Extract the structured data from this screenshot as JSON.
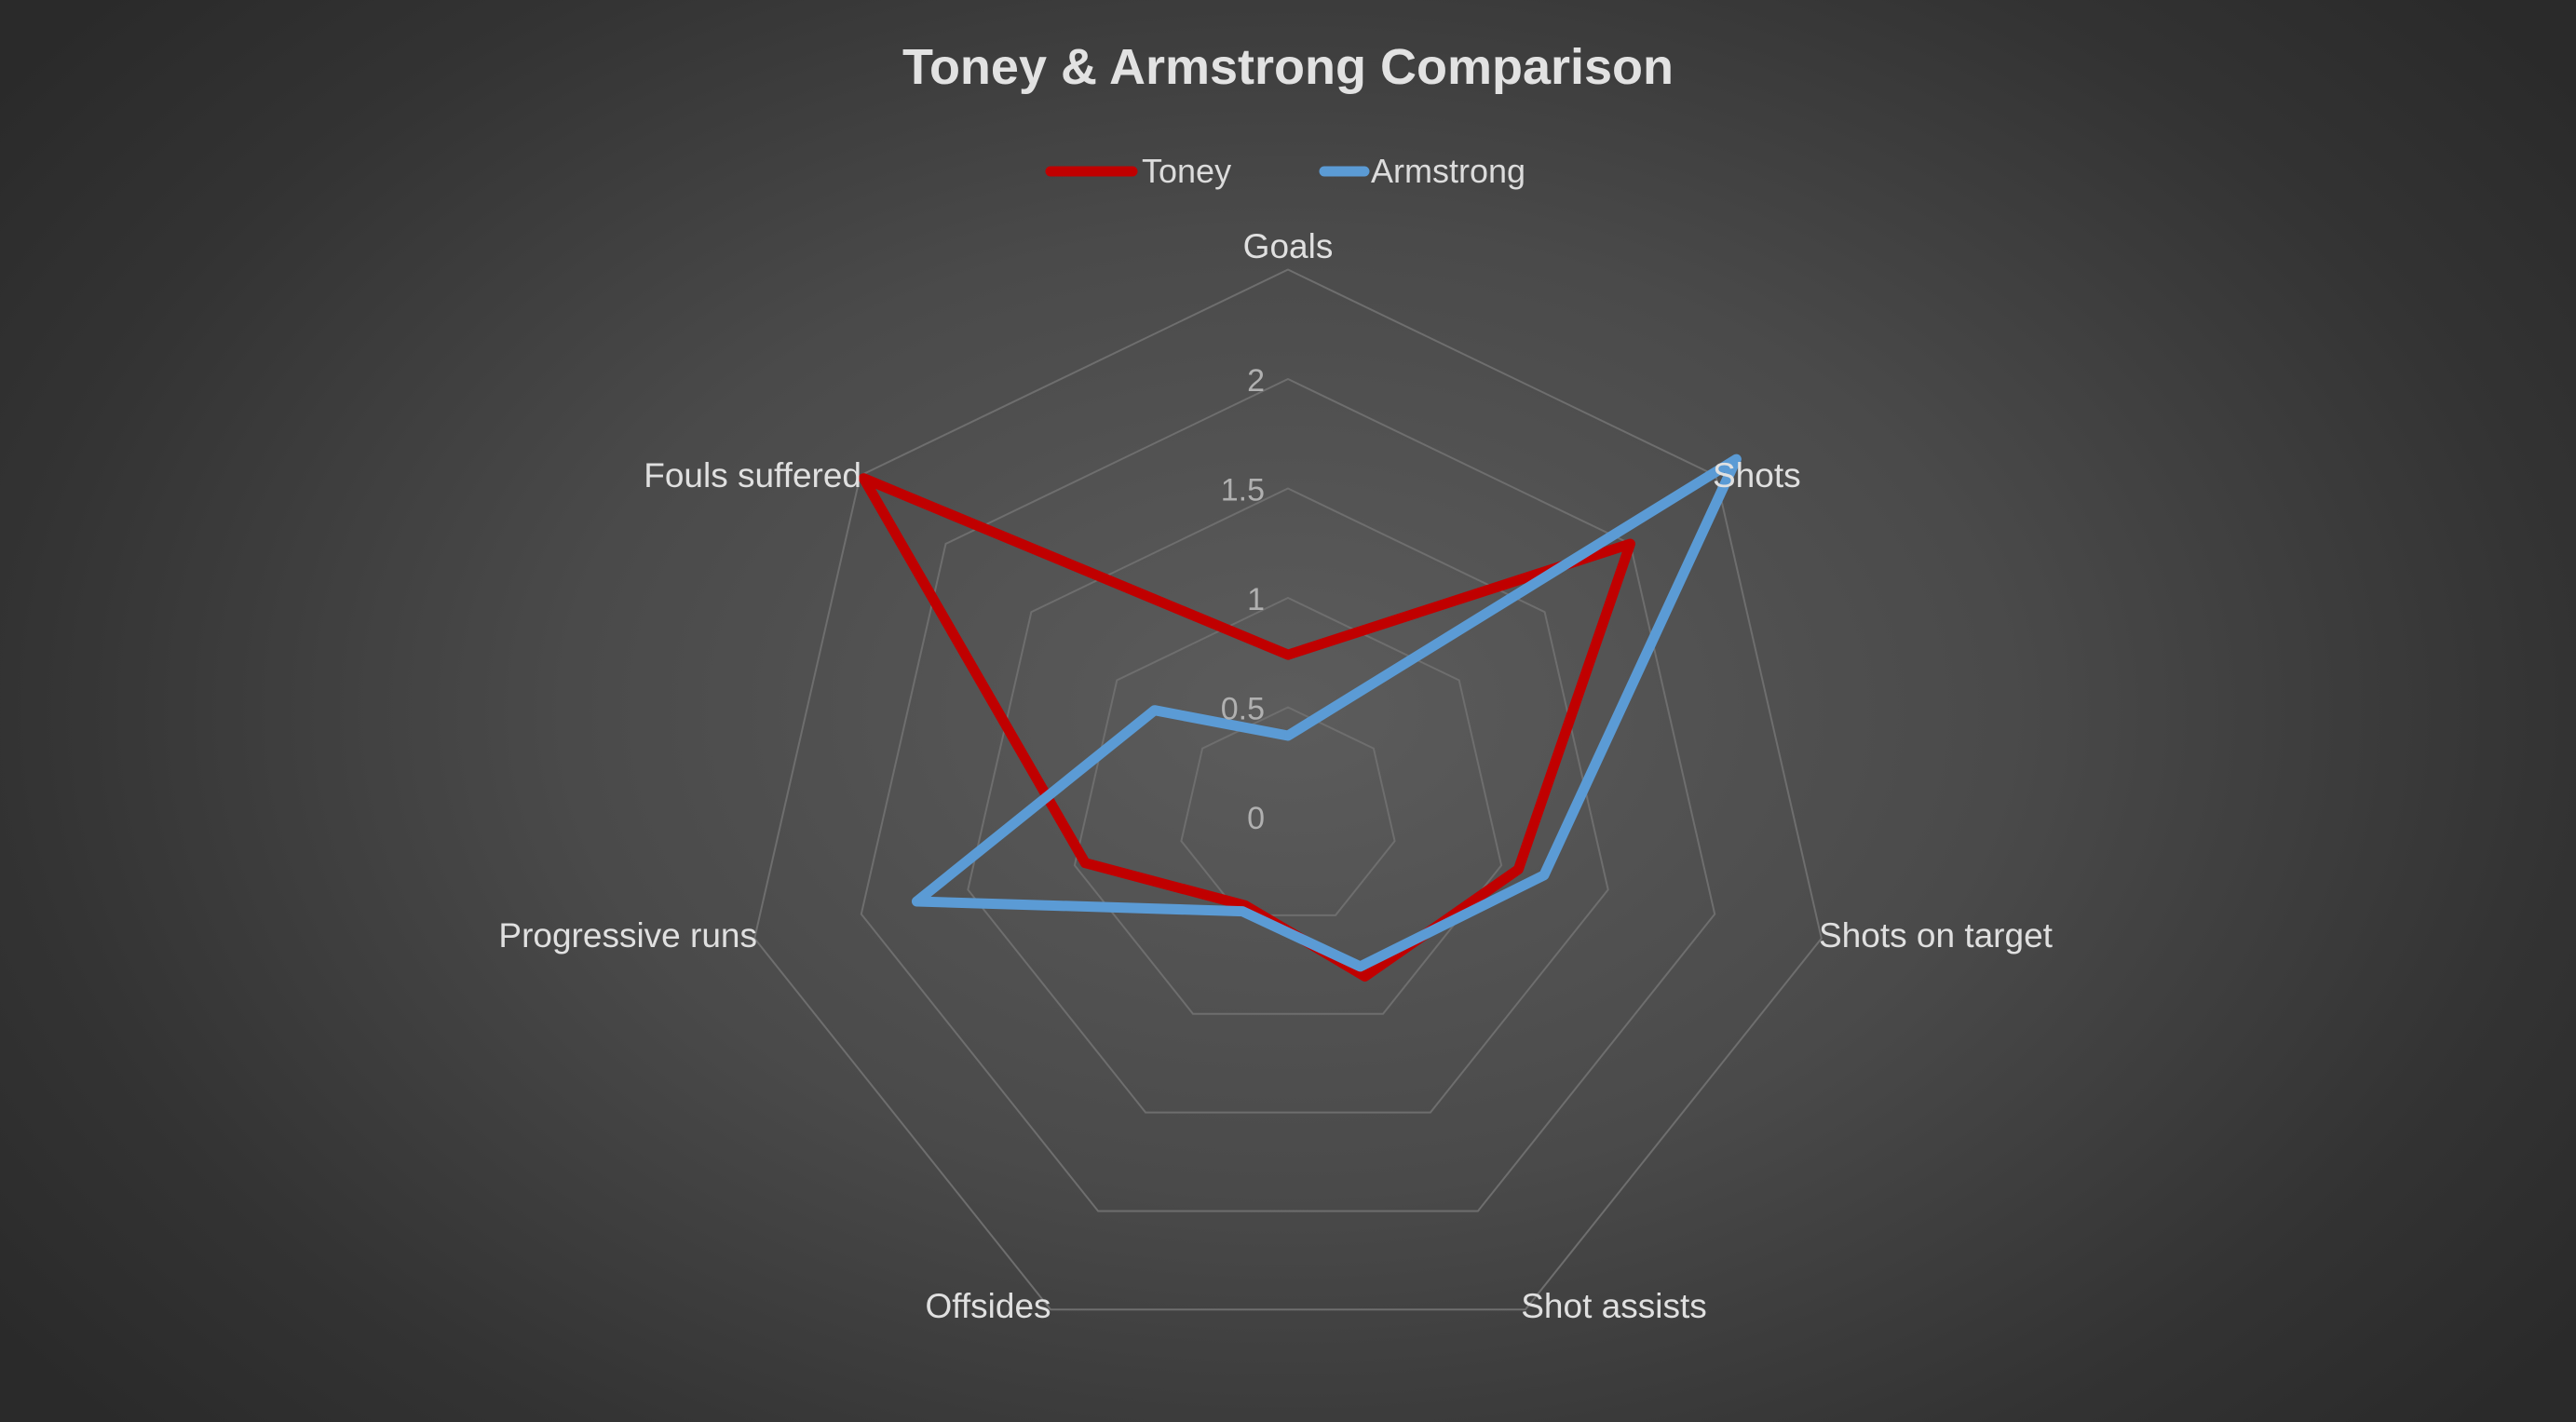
{
  "chart_data": {
    "type": "radar",
    "title": "Toney & Armstrong Comparison",
    "categories": [
      "Goals",
      "Shots",
      "Shots on target",
      "Shot assists",
      "Offsides",
      "Progressive runs",
      "Fouls suffered"
    ],
    "series": [
      {
        "name": "Toney",
        "color": "#c00000",
        "values": [
          0.74,
          2.0,
          1.08,
          0.81,
          0.45,
          0.95,
          2.48
        ]
      },
      {
        "name": "Armstrong",
        "color": "#5b9bd5",
        "values": [
          0.37,
          2.62,
          1.2,
          0.76,
          0.48,
          1.74,
          0.78
        ]
      }
    ],
    "radial_ticks": [
      "0",
      "0.5",
      "1",
      "1.5",
      "2"
    ],
    "rlim": [
      0,
      2.5
    ],
    "legend_position": "top",
    "gridline_color": "#6e6e6e",
    "background": "dark gray radial gradient"
  }
}
